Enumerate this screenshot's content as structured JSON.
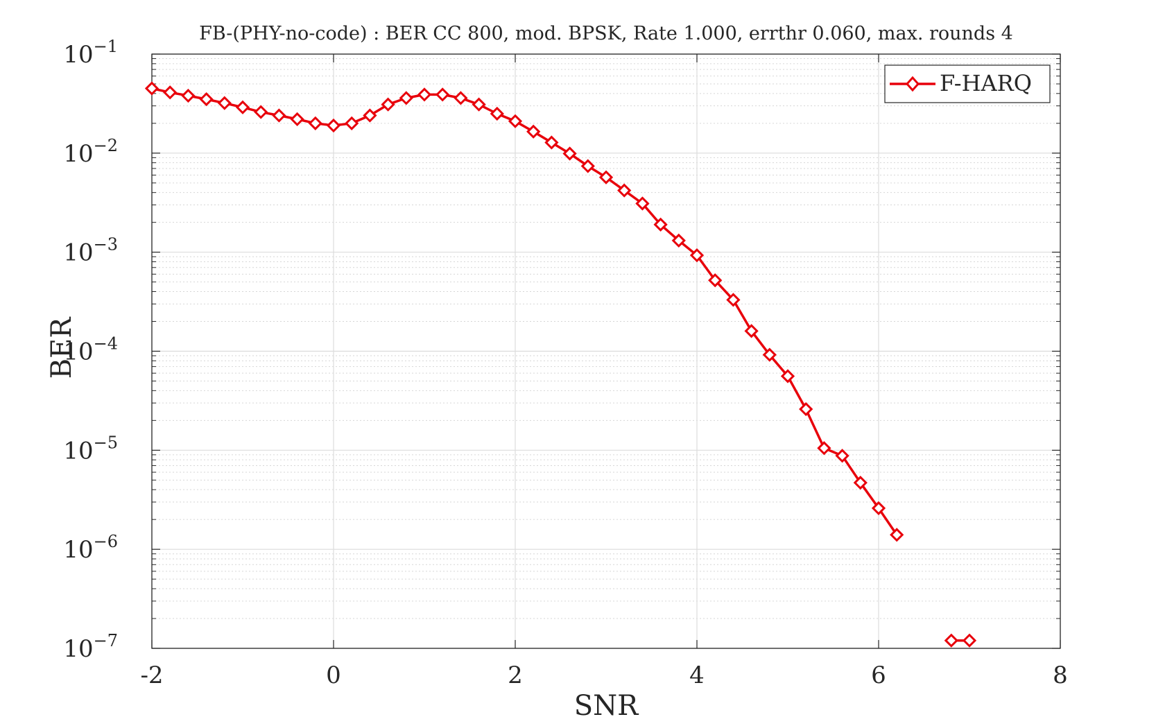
{
  "chart_data": {
    "type": "line",
    "title": "FB-(PHY-no-code) : BER CC 800, mod. BPSK, Rate 1.000, errthr 0.060, max. rounds 4",
    "xlabel": "SNR",
    "ylabel": "BER",
    "xlim": [
      -2,
      8
    ],
    "ylim": [
      1e-07,
      0.1
    ],
    "yscale": "log",
    "grid": true,
    "minor_grid": true,
    "legend_location": "top-right",
    "xticks": [
      -2,
      0,
      2,
      4,
      6,
      8
    ],
    "xtick_labels": [
      "-2",
      "0",
      "2",
      "4",
      "6",
      "8"
    ],
    "yticks": [
      {
        "base": "10",
        "exp": "−1",
        "value": 0.1
      },
      {
        "base": "10",
        "exp": "−2",
        "value": 0.01
      },
      {
        "base": "10",
        "exp": "−3",
        "value": 0.001
      },
      {
        "base": "10",
        "exp": "−4",
        "value": 0.0001
      },
      {
        "base": "10",
        "exp": "−5",
        "value": 1e-05
      },
      {
        "base": "10",
        "exp": "−6",
        "value": 1e-06
      },
      {
        "base": "10",
        "exp": "−7",
        "value": 1e-07
      }
    ],
    "series": [
      {
        "name": "F-HARQ",
        "color": "#e8000b",
        "marker": "diamond",
        "segments": [
          {
            "x": [
              -2.0,
              -1.8,
              -1.6,
              -1.4,
              -1.2,
              -1.0,
              -0.8,
              -0.6,
              -0.4,
              -0.2,
              0.0,
              0.2,
              0.4,
              0.6,
              0.8,
              1.0,
              1.2,
              1.4,
              1.6,
              1.8,
              2.0,
              2.2,
              2.4,
              2.6,
              2.8,
              3.0,
              3.2,
              3.4,
              3.6,
              3.8,
              4.0,
              4.2,
              4.4,
              4.6,
              4.8,
              5.0,
              5.2,
              5.4,
              5.6,
              5.8,
              6.0,
              6.2
            ],
            "y": [
              0.045,
              0.041,
              0.038,
              0.035,
              0.032,
              0.029,
              0.026,
              0.024,
              0.022,
              0.02,
              0.019,
              0.02,
              0.024,
              0.031,
              0.036,
              0.039,
              0.039,
              0.036,
              0.031,
              0.025,
              0.021,
              0.0165,
              0.0128,
              0.0099,
              0.0074,
              0.0057,
              0.0042,
              0.0031,
              0.0019,
              0.00131,
              0.00093,
              0.00052,
              0.00033,
              0.00016,
              9.2e-05,
              5.6e-05,
              2.6e-05,
              1.05e-05,
              8.8e-06,
              4.7e-06,
              2.6e-06,
              1.4e-06
            ]
          },
          {
            "x": [
              6.8,
              7.0
            ],
            "y": [
              1.2e-07,
              1.2e-07
            ]
          }
        ]
      }
    ]
  }
}
